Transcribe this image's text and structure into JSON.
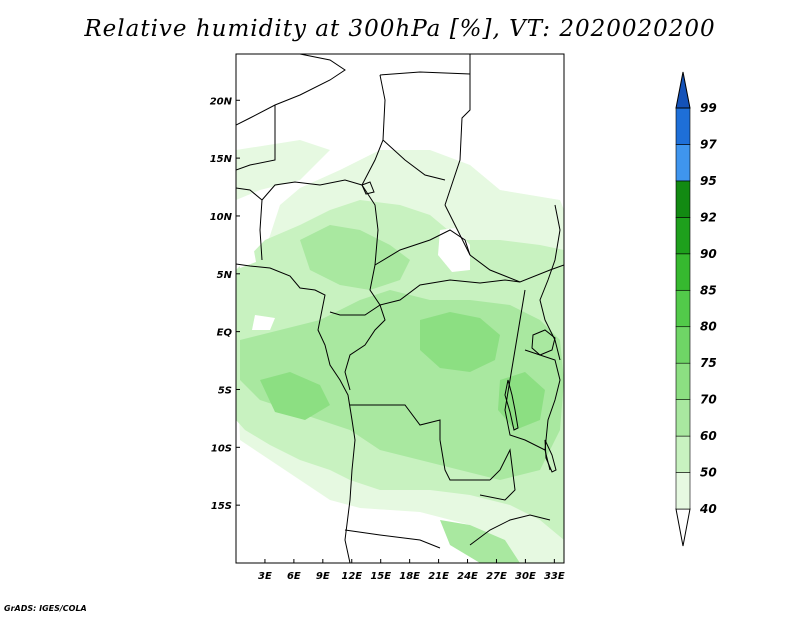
{
  "title": "Relative humidity at 300hPa [%], VT: 2020020200",
  "credit": "GrADS: IGES/COLA",
  "map": {
    "lon_range": [
      0,
      34
    ],
    "lat_range": [
      -20,
      24
    ],
    "lat_ticks": [
      {
        "value": 20,
        "label": "20N"
      },
      {
        "value": 15,
        "label": "15N"
      },
      {
        "value": 10,
        "label": "10N"
      },
      {
        "value": 5,
        "label": "5N"
      },
      {
        "value": 0,
        "label": "EQ"
      },
      {
        "value": -5,
        "label": "5S"
      },
      {
        "value": -10,
        "label": "10S"
      },
      {
        "value": -15,
        "label": "15S"
      }
    ],
    "lon_ticks": [
      {
        "value": 3,
        "label": "3E"
      },
      {
        "value": 6,
        "label": "6E"
      },
      {
        "value": 9,
        "label": "9E"
      },
      {
        "value": 12,
        "label": "12E"
      },
      {
        "value": 15,
        "label": "15E"
      },
      {
        "value": 18,
        "label": "18E"
      },
      {
        "value": 21,
        "label": "21E"
      },
      {
        "value": 24,
        "label": "24E"
      },
      {
        "value": 27,
        "label": "27E"
      },
      {
        "value": 30,
        "label": "30E"
      },
      {
        "value": 33,
        "label": "33E"
      }
    ]
  },
  "colorbar": {
    "levels": [
      "40",
      "50",
      "60",
      "70",
      "75",
      "80",
      "85",
      "90",
      "92",
      "95",
      "97",
      "99"
    ],
    "colors": [
      "#ffffff",
      "#e6f9e1",
      "#c8f2c0",
      "#a9e8a0",
      "#8cdf82",
      "#6fd566",
      "#52ca4a",
      "#36b92f",
      "#1ea01c",
      "#128a12",
      "#3f95ee",
      "#1e6fd8",
      "#1452b8"
    ]
  }
}
